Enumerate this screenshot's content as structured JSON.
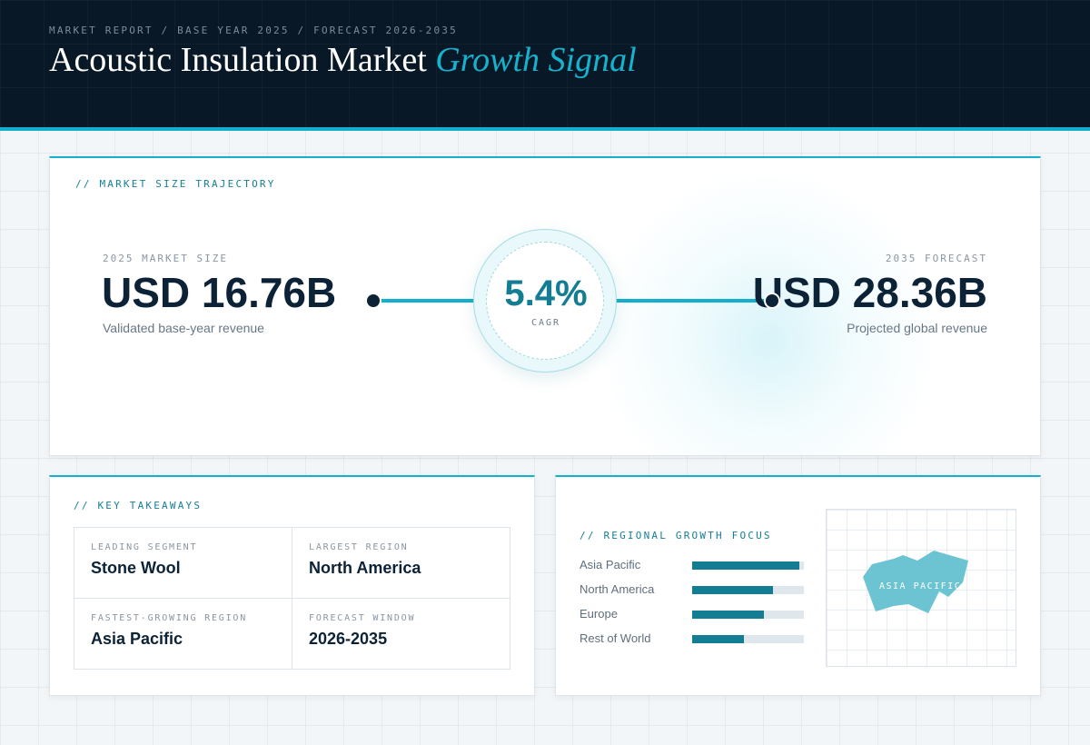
{
  "header": {
    "breadcrumb": "MARKET REPORT / BASE YEAR 2025 / FORECAST 2026-2035",
    "title_main": "Acoustic Insulation Market",
    "title_accent": "Growth Signal"
  },
  "trajectory": {
    "label": "// MARKET SIZE TRAJECTORY",
    "start": {
      "kicker": "2025 MARKET SIZE",
      "value": "USD 16.76B",
      "caption": "Validated base-year revenue"
    },
    "end": {
      "kicker": "2035 FORECAST",
      "value": "USD 28.36B",
      "caption": "Projected global revenue"
    },
    "cagr": {
      "value": "5.4%",
      "label": "CAGR"
    }
  },
  "takeaways": {
    "label": "// KEY TAKEAWAYS",
    "items": [
      {
        "key": "LEADING SEGMENT",
        "value": "Stone Wool"
      },
      {
        "key": "LARGEST REGION",
        "value": "North America"
      },
      {
        "key": "FASTEST-GROWING REGION",
        "value": "Asia Pacific"
      },
      {
        "key": "FORECAST WINDOW",
        "value": "2026-2035"
      }
    ]
  },
  "regional": {
    "label": "// REGIONAL GROWTH FOCUS",
    "bars": [
      {
        "name": "Asia Pacific",
        "level": 0.96
      },
      {
        "name": "North America",
        "level": 0.72
      },
      {
        "name": "Europe",
        "level": 0.64
      },
      {
        "name": "Rest of World",
        "level": 0.46
      }
    ],
    "map_label": "ASIA PACIFIC",
    "colors": {
      "bar": "#137d93",
      "map_shape": "#6cc3d2"
    }
  },
  "colors": {
    "accent": "#12b0cc",
    "dark": "#081826",
    "ink": "#0c2236"
  }
}
